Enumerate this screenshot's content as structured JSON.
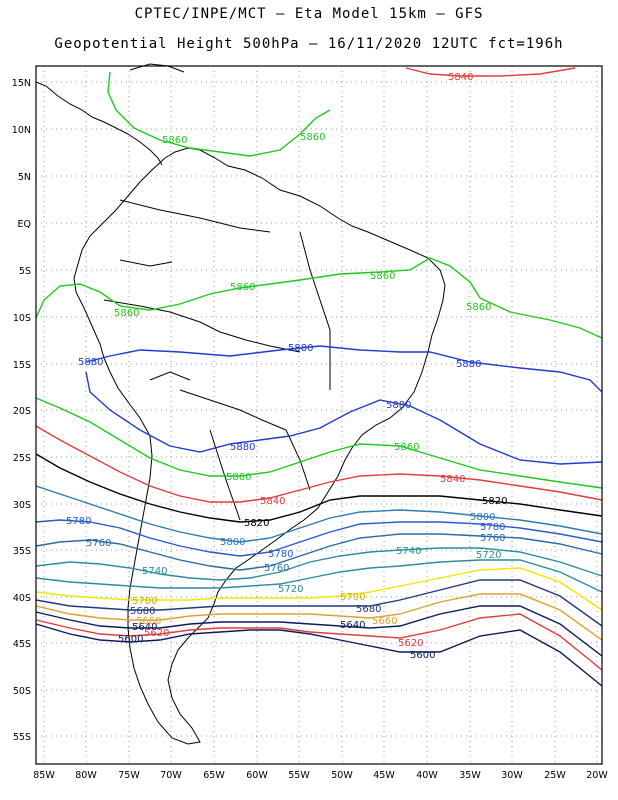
{
  "header": {
    "line1": "CPTEC/INPE/MCT –  Eta Model 15km – GFS",
    "line2": "Geopotential Height 500hPa – 16/11/2020 12UTC fct=196h"
  },
  "axes": {
    "lat_labels": [
      "15N",
      "10N",
      "5N",
      "EQ",
      "5S",
      "10S",
      "15S",
      "20S",
      "25S",
      "30S",
      "35S",
      "40S",
      "45S",
      "50S",
      "55S"
    ],
    "lon_labels": [
      "85W",
      "80W",
      "75W",
      "70W",
      "65W",
      "60W",
      "55W",
      "50W",
      "45W",
      "40W",
      "35W",
      "30W",
      "25W",
      "20W"
    ],
    "grid": "dotted"
  },
  "contours": [
    {
      "value": 5600,
      "color": "#0a1a5c",
      "label": "5600"
    },
    {
      "value": 5620,
      "color": "#e03c3c",
      "label": "5620"
    },
    {
      "value": 5640,
      "color": "#0a1a5c",
      "label": "5640"
    },
    {
      "value": 5660,
      "color": "#e0a030",
      "label": "5660"
    },
    {
      "value": 5680,
      "color": "#1e3c78",
      "label": "5680"
    },
    {
      "value": 5700,
      "color": "#f0e600",
      "label": "5700"
    },
    {
      "value": 5720,
      "color": "#2c8ca0",
      "label": "5720"
    },
    {
      "value": 5740,
      "color": "#2c8ca0",
      "label": "5740"
    },
    {
      "value": 5760,
      "color": "#2a6aa8",
      "label": "5760"
    },
    {
      "value": 5780,
      "color": "#2a5ad0",
      "label": "5780"
    },
    {
      "value": 5800,
      "color": "#2a7ab8",
      "label": "5800"
    },
    {
      "value": 5820,
      "color": "#000000",
      "label": "5820"
    },
    {
      "value": 5840,
      "color": "#e03c3c",
      "label": "5840"
    },
    {
      "value": 5860,
      "color": "#1ec81e",
      "label": "5860"
    },
    {
      "value": 5880,
      "color": "#1e3cd2",
      "label": "5880"
    }
  ],
  "colors": {
    "land_outline": "#000000",
    "frame": "#000000",
    "grid": "#999999"
  }
}
